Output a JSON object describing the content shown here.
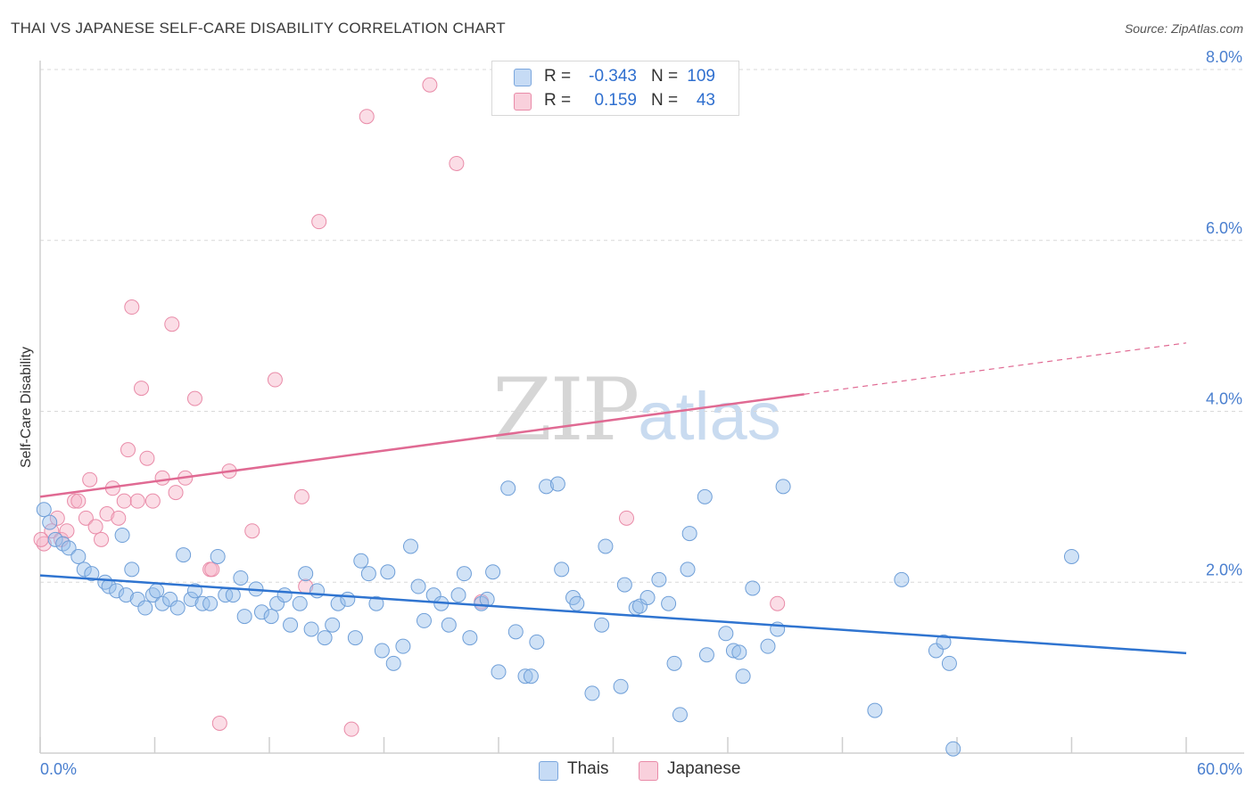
{
  "title": "THAI VS JAPANESE SELF-CARE DISABILITY CORRELATION CHART",
  "source": "Source: ZipAtlas.com",
  "watermark": {
    "zip": "ZIP",
    "atlas": "atlas"
  },
  "legend_top": [
    {
      "swatch_color": "#aecbf0",
      "r_label": "R =",
      "r_value": "-0.343",
      "n_label": "N =",
      "n_value": "109"
    },
    {
      "swatch_color": "#f6bccd",
      "r_label": "R =",
      "r_value": "0.159",
      "n_label": "N =",
      "n_value": "43"
    }
  ],
  "legend_bottom": [
    {
      "label": "Thais",
      "color": "#aecbf0"
    },
    {
      "label": "Japanese",
      "color": "#f6bccd"
    }
  ],
  "colors": {
    "thais_fill": "rgba(150,190,235,0.45)",
    "thais_stroke": "#6f9fd8",
    "thais_line": "#2f74d0",
    "japanese_fill": "rgba(246,180,200,0.45)",
    "japanese_stroke": "#e98ba8",
    "japanese_line": "#e06a93",
    "tick_label": "#4a7fcf",
    "grid": "#d9d9d9"
  },
  "chart_data": {
    "type": "scatter",
    "title": "THAI VS JAPANESE SELF-CARE DISABILITY CORRELATION CHART",
    "ylabel": "Self-Care Disability",
    "xlabel": "",
    "xlim": [
      0,
      60
    ],
    "ylim": [
      0,
      8.0
    ],
    "x_tick_labels": [
      "0.0%",
      "60.0%"
    ],
    "y_ticks": [
      2.0,
      4.0,
      6.0,
      8.0
    ],
    "y_tick_labels": [
      "2.0%",
      "4.0%",
      "6.0%",
      "8.0%"
    ],
    "grid": true,
    "legend_position": "top-center",
    "series": [
      {
        "name": "Thais",
        "r": -0.343,
        "n": 109,
        "trend": {
          "x0": 0,
          "y0": 2.08,
          "x1": 60,
          "y1": 1.17,
          "solid_until": 60
        },
        "points": [
          [
            0.2,
            2.85
          ],
          [
            0.5,
            2.7
          ],
          [
            0.8,
            2.5
          ],
          [
            1.2,
            2.45
          ],
          [
            1.5,
            2.4
          ],
          [
            2.0,
            2.3
          ],
          [
            2.3,
            2.15
          ],
          [
            2.7,
            2.1
          ],
          [
            3.4,
            2.0
          ],
          [
            3.6,
            1.95
          ],
          [
            4.0,
            1.9
          ],
          [
            4.3,
            2.55
          ],
          [
            4.5,
            1.85
          ],
          [
            4.8,
            2.15
          ],
          [
            5.1,
            1.8
          ],
          [
            5.5,
            1.7
          ],
          [
            5.9,
            1.85
          ],
          [
            6.1,
            1.9
          ],
          [
            6.4,
            1.75
          ],
          [
            6.8,
            1.8
          ],
          [
            7.2,
            1.7
          ],
          [
            7.5,
            2.32
          ],
          [
            7.9,
            1.8
          ],
          [
            8.1,
            1.9
          ],
          [
            8.5,
            1.75
          ],
          [
            8.9,
            1.75
          ],
          [
            9.3,
            2.3
          ],
          [
            9.7,
            1.85
          ],
          [
            10.1,
            1.85
          ],
          [
            10.5,
            2.05
          ],
          [
            10.7,
            1.6
          ],
          [
            11.3,
            1.92
          ],
          [
            11.6,
            1.65
          ],
          [
            12.1,
            1.6
          ],
          [
            12.4,
            1.75
          ],
          [
            12.8,
            1.85
          ],
          [
            13.1,
            1.5
          ],
          [
            13.6,
            1.75
          ],
          [
            13.9,
            2.1
          ],
          [
            14.2,
            1.45
          ],
          [
            14.5,
            1.9
          ],
          [
            14.9,
            1.35
          ],
          [
            15.3,
            1.5
          ],
          [
            15.6,
            1.75
          ],
          [
            16.1,
            1.8
          ],
          [
            16.5,
            1.35
          ],
          [
            16.8,
            2.25
          ],
          [
            17.2,
            2.1
          ],
          [
            17.6,
            1.75
          ],
          [
            17.9,
            1.2
          ],
          [
            18.2,
            2.12
          ],
          [
            18.5,
            1.05
          ],
          [
            19.0,
            1.25
          ],
          [
            19.4,
            2.42
          ],
          [
            19.8,
            1.95
          ],
          [
            20.1,
            1.55
          ],
          [
            20.6,
            1.85
          ],
          [
            21.0,
            1.75
          ],
          [
            21.4,
            1.5
          ],
          [
            21.9,
            1.85
          ],
          [
            22.2,
            2.1
          ],
          [
            22.5,
            1.35
          ],
          [
            23.1,
            1.75
          ],
          [
            23.4,
            1.8
          ],
          [
            23.7,
            2.12
          ],
          [
            24.0,
            0.95
          ],
          [
            24.5,
            3.1
          ],
          [
            24.9,
            1.42
          ],
          [
            25.4,
            0.9
          ],
          [
            25.7,
            0.9
          ],
          [
            26.0,
            1.3
          ],
          [
            26.5,
            3.12
          ],
          [
            27.1,
            3.15
          ],
          [
            27.3,
            2.15
          ],
          [
            27.9,
            1.82
          ],
          [
            28.1,
            1.75
          ],
          [
            28.9,
            0.7
          ],
          [
            29.4,
            1.5
          ],
          [
            29.6,
            2.42
          ],
          [
            30.4,
            0.78
          ],
          [
            30.6,
            1.97
          ],
          [
            31.2,
            1.7
          ],
          [
            31.4,
            1.72
          ],
          [
            31.8,
            1.82
          ],
          [
            32.4,
            2.03
          ],
          [
            32.9,
            1.75
          ],
          [
            33.2,
            1.05
          ],
          [
            33.5,
            0.45
          ],
          [
            33.9,
            2.15
          ],
          [
            34.0,
            2.57
          ],
          [
            34.8,
            3.0
          ],
          [
            34.9,
            1.15
          ],
          [
            35.9,
            1.4
          ],
          [
            36.3,
            1.2
          ],
          [
            36.6,
            1.18
          ],
          [
            36.8,
            0.9
          ],
          [
            37.3,
            1.93
          ],
          [
            38.1,
            1.25
          ],
          [
            38.6,
            1.45
          ],
          [
            38.9,
            3.12
          ],
          [
            43.7,
            0.5
          ],
          [
            45.1,
            2.03
          ],
          [
            46.9,
            1.2
          ],
          [
            47.3,
            1.3
          ],
          [
            47.6,
            1.05
          ],
          [
            47.8,
            0.05
          ],
          [
            54.0,
            2.3
          ]
        ]
      },
      {
        "name": "Japanese",
        "r": 0.159,
        "n": 43,
        "trend": {
          "x0": 0,
          "y0": 3.0,
          "x1": 60,
          "y1": 4.8,
          "solid_until": 40
        },
        "points": [
          [
            0.2,
            2.45
          ],
          [
            0.6,
            2.6
          ],
          [
            0.9,
            2.75
          ],
          [
            1.1,
            2.5
          ],
          [
            1.4,
            2.6
          ],
          [
            1.8,
            2.95
          ],
          [
            2.0,
            2.95
          ],
          [
            2.4,
            2.75
          ],
          [
            2.6,
            3.2
          ],
          [
            2.9,
            2.65
          ],
          [
            3.2,
            2.5
          ],
          [
            3.5,
            2.8
          ],
          [
            3.8,
            3.1
          ],
          [
            4.1,
            2.75
          ],
          [
            4.4,
            2.95
          ],
          [
            4.6,
            3.55
          ],
          [
            4.8,
            5.22
          ],
          [
            5.1,
            2.95
          ],
          [
            5.3,
            4.27
          ],
          [
            5.6,
            3.45
          ],
          [
            5.9,
            2.95
          ],
          [
            6.4,
            3.22
          ],
          [
            6.9,
            5.02
          ],
          [
            7.1,
            3.05
          ],
          [
            7.6,
            3.22
          ],
          [
            8.1,
            4.15
          ],
          [
            8.9,
            2.15
          ],
          [
            9.0,
            2.15
          ],
          [
            9.4,
            0.35
          ],
          [
            9.9,
            3.3
          ],
          [
            11.1,
            2.6
          ],
          [
            12.3,
            4.37
          ],
          [
            13.7,
            3.0
          ],
          [
            13.9,
            1.95
          ],
          [
            14.6,
            6.22
          ],
          [
            16.3,
            0.28
          ],
          [
            17.1,
            7.45
          ],
          [
            20.4,
            7.82
          ],
          [
            21.8,
            6.9
          ],
          [
            23.1,
            1.77
          ],
          [
            30.7,
            2.75
          ],
          [
            38.6,
            1.75
          ],
          [
            0.05,
            2.5
          ]
        ]
      }
    ]
  }
}
